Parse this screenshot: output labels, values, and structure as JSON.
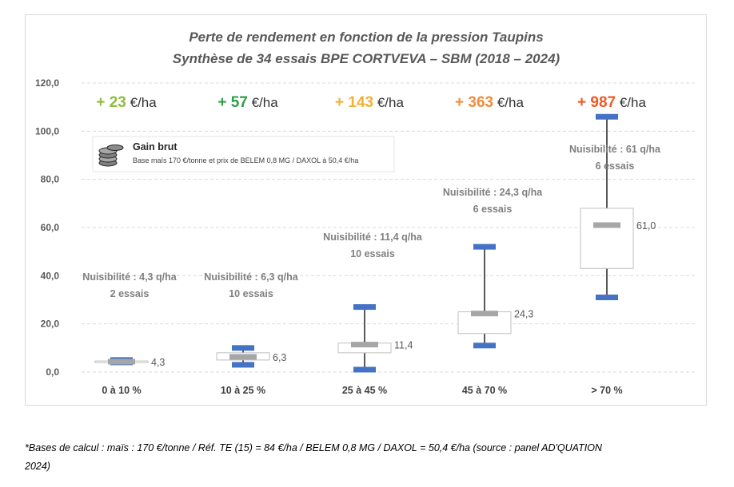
{
  "chart_data": {
    "type": "box",
    "title": "Perte de rendement en fonction de la pression Taupins",
    "subtitle": "Synthèse de 34 essais BPE CORTVEVA – SBM (2018 – 2024)",
    "ylim": [
      0,
      120
    ],
    "yticks": [
      "0,0",
      "20,0",
      "40,0",
      "60,0",
      "80,0",
      "100,0",
      "120,0"
    ],
    "ytick_values": [
      0,
      20,
      40,
      60,
      80,
      100,
      120
    ],
    "grid": true,
    "categories": [
      "0 à 10 %",
      "10 à 25 %",
      "25 à 45 %",
      "45 à 70 %",
      "> 70 %"
    ],
    "boxes": [
      {
        "min": 4,
        "q1": 4,
        "median": 4.3,
        "q3": 4.6,
        "max": 5,
        "median_label": "4,3"
      },
      {
        "min": 3,
        "q1": 5,
        "median": 6.3,
        "q3": 8,
        "max": 10,
        "median_label": "6,3"
      },
      {
        "min": 1,
        "q1": 8,
        "median": 11.4,
        "q3": 12,
        "max": 27,
        "median_label": "11,4"
      },
      {
        "min": 11,
        "q1": 16,
        "median": 24.3,
        "q3": 25,
        "max": 52,
        "median_label": "24,3"
      },
      {
        "min": 31,
        "q1": 43,
        "median": 61.0,
        "q3": 68,
        "max": 106,
        "median_label": "61,0"
      }
    ],
    "gains": [
      {
        "value": "+ 23",
        "unit": "€/ha",
        "color": "#8fbc3f"
      },
      {
        "value": "+ 57",
        "unit": "€/ha",
        "color": "#2e9e4a"
      },
      {
        "value": "+ 143",
        "unit": "€/ha",
        "color": "#f2b134"
      },
      {
        "value": "+ 363",
        "unit": "€/ha",
        "color": "#f28c3c"
      },
      {
        "value": "+ 987",
        "unit": "€/ha",
        "color": "#ee5a24"
      }
    ],
    "nuisibilite": [
      {
        "line1": "Nuisibilité : 4,3 q/ha",
        "line2": "2 essais"
      },
      {
        "line1": "Nuisibilité : 6,3 q/ha",
        "line2": "10 essais"
      },
      {
        "line1": "Nuisibilité : 11,4 q/ha",
        "line2": "10 essais"
      },
      {
        "line1": "Nuisibilité : 24,3 q/ha",
        "line2": "6 essais"
      },
      {
        "line1": "Nuisibilité : 61 q/ha",
        "line2": "6 essais"
      }
    ],
    "legend": {
      "title": "Gain brut",
      "subtitle": "Base maïs 170 €/tonne et prix de BELEM 0,8 MG / DAXOL à 50,4 €/ha",
      "icon": "coins-stack-icon"
    },
    "colors": {
      "whisker_cap": "#4472c4",
      "median": "#a6a6a6",
      "whisker": "#595959",
      "grid": "#d9d9d9"
    }
  },
  "footnote": {
    "line1": "*Bases de calcul : maïs : 170 €/tonne / Réf. TE (15) = 84 €/ha / BELEM 0,8 MG / DAXOL = 50,4 €/ha (source : panel AD'QUATION",
    "line2": "2024)"
  }
}
